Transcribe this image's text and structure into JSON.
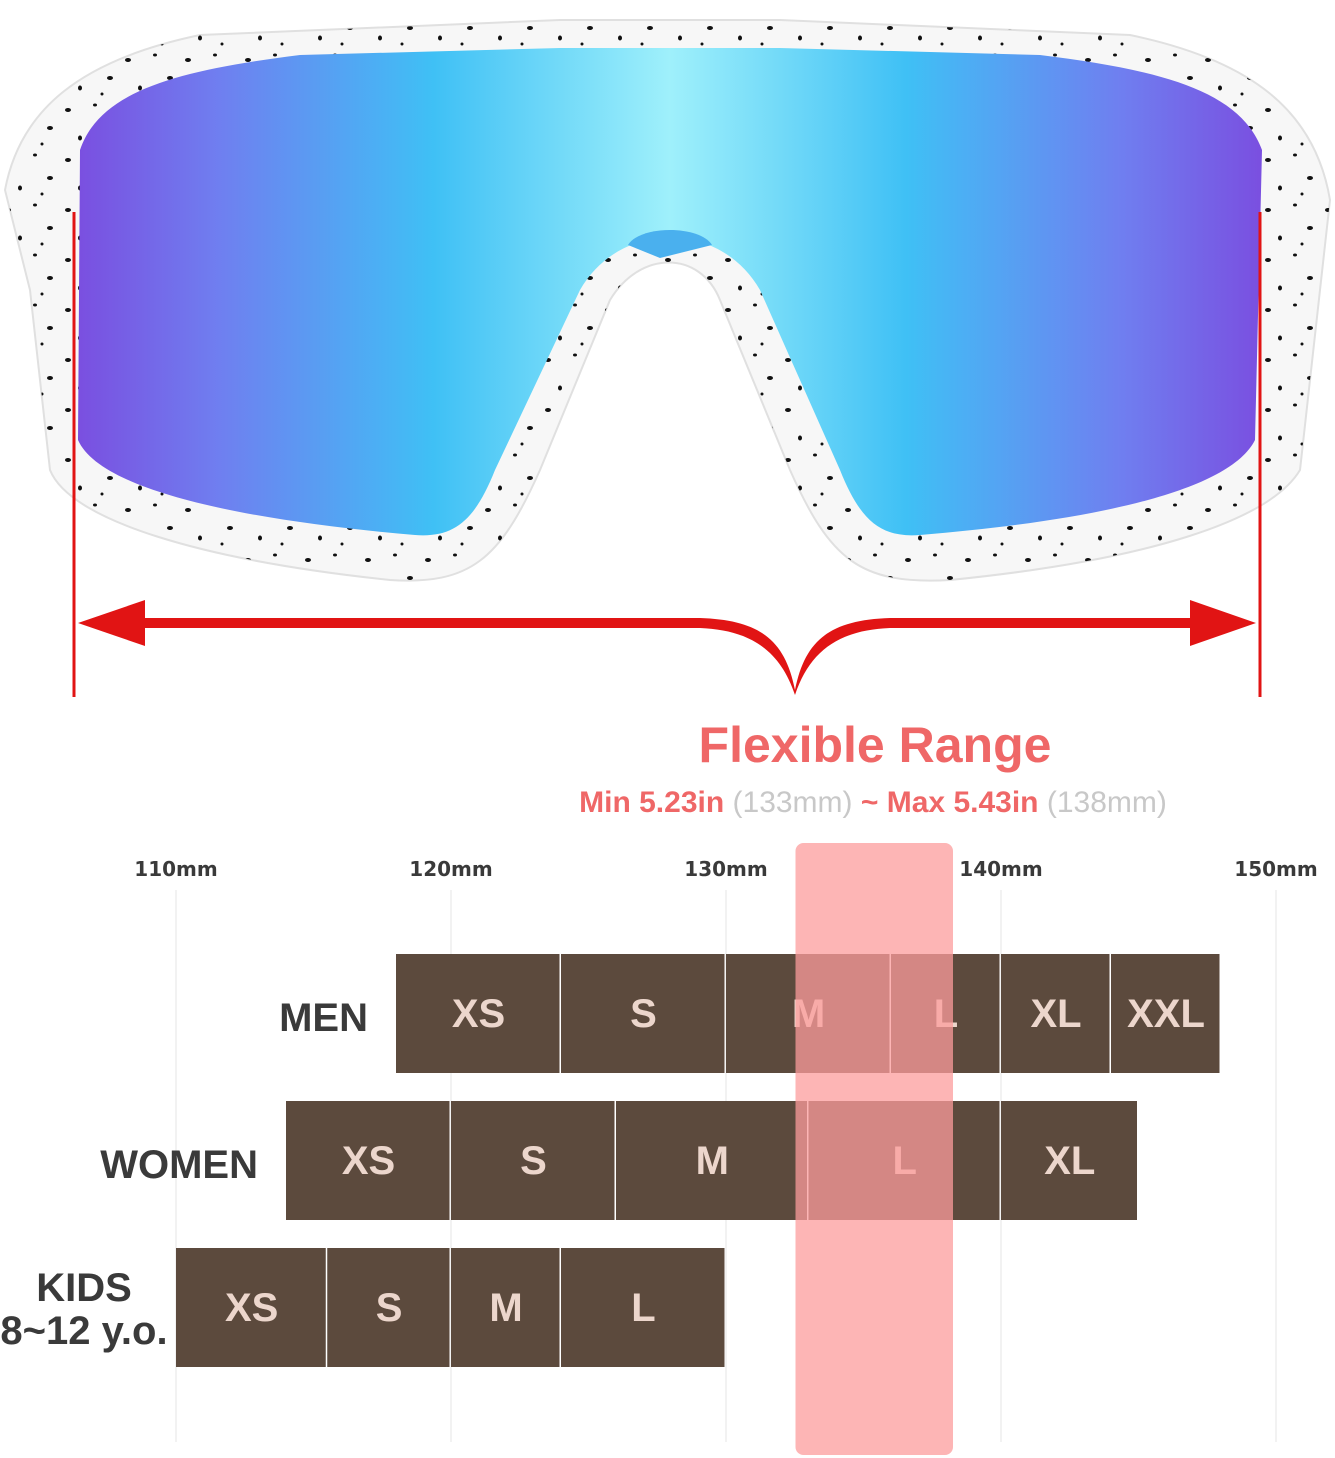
{
  "title": "Flexible Range",
  "subtitle": {
    "min_label": "Min 5.23in",
    "min_mm": "(133mm)",
    "separator": "~",
    "max_label": "Max 5.43in",
    "max_mm": "(138mm)"
  },
  "colors": {
    "accent_red": "#ef6767",
    "muted_gray": "#c8c8c8",
    "cell_brown": "#5c4a3d",
    "cell_text": "#ecd6cc",
    "highlight": "#fc9c9c",
    "arrow_red": "#e11414"
  },
  "chart_data": {
    "type": "range-bar",
    "axis_unit": "mm",
    "xlim": [
      110,
      150
    ],
    "ticks": [
      {
        "value": 110,
        "label": "110mm"
      },
      {
        "value": 120,
        "label": "120mm"
      },
      {
        "value": 130,
        "label": "130mm"
      },
      {
        "value": 140,
        "label": "140mm"
      },
      {
        "value": 150,
        "label": "150mm"
      }
    ],
    "highlight_range": [
      133,
      138
    ],
    "grid": true,
    "rows": [
      {
        "label": "MEN",
        "sublabel": "",
        "sizes": [
          {
            "size": "XS",
            "range": [
              118,
              124
            ]
          },
          {
            "size": "S",
            "range": [
              124,
              130
            ]
          },
          {
            "size": "M",
            "range": [
              130,
              136
            ]
          },
          {
            "size": "L",
            "range": [
              136,
              140
            ]
          },
          {
            "size": "XL",
            "range": [
              140,
              144
            ]
          },
          {
            "size": "XXL",
            "range": [
              144,
              148
            ]
          }
        ]
      },
      {
        "label": "WOMEN",
        "sublabel": "",
        "sizes": [
          {
            "size": "XS",
            "range": [
              114,
              120
            ]
          },
          {
            "size": "S",
            "range": [
              120,
              126
            ]
          },
          {
            "size": "M",
            "range": [
              126,
              133
            ]
          },
          {
            "size": "L",
            "range": [
              133,
              140
            ]
          },
          {
            "size": "XL",
            "range": [
              140,
              145
            ]
          }
        ]
      },
      {
        "label": "KIDS",
        "sublabel": "8~12 y.o.",
        "sizes": [
          {
            "size": "XS",
            "range": [
              110,
              115.5
            ]
          },
          {
            "size": "S",
            "range": [
              115.5,
              120
            ]
          },
          {
            "size": "M",
            "range": [
              120,
              124
            ]
          },
          {
            "size": "L",
            "range": [
              124,
              130
            ]
          }
        ]
      }
    ]
  }
}
